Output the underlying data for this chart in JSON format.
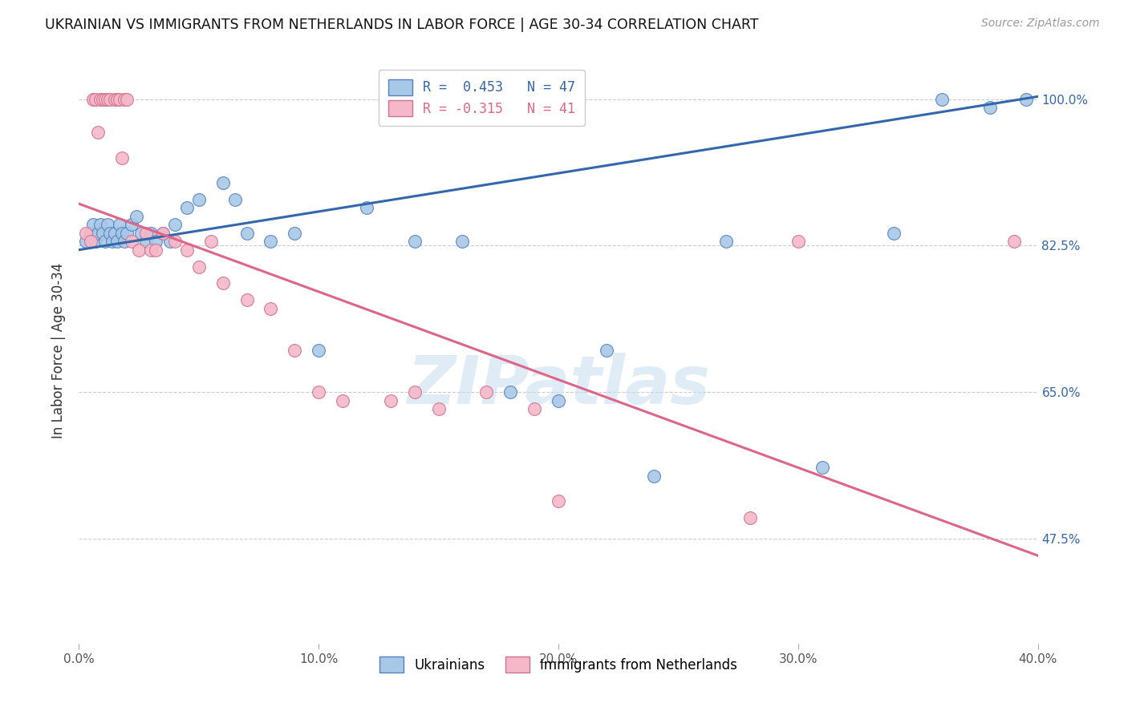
{
  "title": "UKRAINIAN VS IMMIGRANTS FROM NETHERLANDS IN LABOR FORCE | AGE 30-34 CORRELATION CHART",
  "source": "Source: ZipAtlas.com",
  "ylabel": "In Labor Force | Age 30-34",
  "x_min": 0.0,
  "x_max": 0.4,
  "y_min": 0.35,
  "y_max": 1.05,
  "y_ticks": [
    0.475,
    0.65,
    0.825,
    1.0
  ],
  "y_tick_labels": [
    "47.5%",
    "65.0%",
    "82.5%",
    "100.0%"
  ],
  "x_tick_labels": [
    "0.0%",
    "10.0%",
    "20.0%",
    "30.0%",
    "40.0%"
  ],
  "x_ticks": [
    0.0,
    0.1,
    0.2,
    0.3,
    0.4
  ],
  "legend_label_blue": "R =  0.453   N = 47",
  "legend_label_pink": "R = -0.315   N = 41",
  "legend_bottom_blue": "Ukrainians",
  "legend_bottom_pink": "Immigrants from Netherlands",
  "blue_color": "#a8c8e8",
  "blue_edge_color": "#5580bb",
  "blue_line_color": "#3366aa",
  "pink_color": "#f5b8c8",
  "pink_edge_color": "#d07090",
  "pink_line_color": "#dd6688",
  "watermark": "ZIPatlas",
  "blue_line_y0": 0.82,
  "blue_line_y1": 1.003,
  "pink_line_y0": 0.875,
  "pink_line_y1": 0.455,
  "blue_points_x": [
    0.003,
    0.005,
    0.006,
    0.007,
    0.008,
    0.009,
    0.01,
    0.011,
    0.012,
    0.013,
    0.014,
    0.015,
    0.016,
    0.017,
    0.018,
    0.019,
    0.02,
    0.022,
    0.024,
    0.026,
    0.028,
    0.03,
    0.032,
    0.035,
    0.038,
    0.04,
    0.045,
    0.05,
    0.06,
    0.065,
    0.07,
    0.08,
    0.09,
    0.1,
    0.12,
    0.14,
    0.16,
    0.18,
    0.2,
    0.22,
    0.24,
    0.27,
    0.31,
    0.34,
    0.36,
    0.38,
    0.395
  ],
  "blue_points_y": [
    0.83,
    0.84,
    0.85,
    0.83,
    0.84,
    0.85,
    0.84,
    0.83,
    0.85,
    0.84,
    0.83,
    0.84,
    0.83,
    0.85,
    0.84,
    0.83,
    0.84,
    0.85,
    0.86,
    0.84,
    0.83,
    0.84,
    0.83,
    0.84,
    0.83,
    0.85,
    0.87,
    0.88,
    0.9,
    0.88,
    0.84,
    0.83,
    0.84,
    0.7,
    0.87,
    0.83,
    0.83,
    0.65,
    0.64,
    0.7,
    0.55,
    0.83,
    0.56,
    0.84,
    1.0,
    0.99,
    1.0
  ],
  "pink_points_x": [
    0.003,
    0.005,
    0.006,
    0.007,
    0.008,
    0.009,
    0.01,
    0.011,
    0.012,
    0.013,
    0.015,
    0.016,
    0.017,
    0.018,
    0.019,
    0.02,
    0.022,
    0.025,
    0.028,
    0.03,
    0.032,
    0.035,
    0.04,
    0.045,
    0.05,
    0.055,
    0.06,
    0.07,
    0.08,
    0.09,
    0.1,
    0.11,
    0.13,
    0.14,
    0.15,
    0.17,
    0.19,
    0.2,
    0.28,
    0.3,
    0.39
  ],
  "pink_points_y": [
    0.84,
    0.83,
    1.0,
    1.0,
    0.96,
    1.0,
    1.0,
    1.0,
    1.0,
    1.0,
    1.0,
    1.0,
    1.0,
    0.93,
    1.0,
    1.0,
    0.83,
    0.82,
    0.84,
    0.82,
    0.82,
    0.84,
    0.83,
    0.82,
    0.8,
    0.83,
    0.78,
    0.76,
    0.75,
    0.7,
    0.65,
    0.64,
    0.64,
    0.65,
    0.63,
    0.65,
    0.63,
    0.52,
    0.5,
    0.83,
    0.83
  ]
}
